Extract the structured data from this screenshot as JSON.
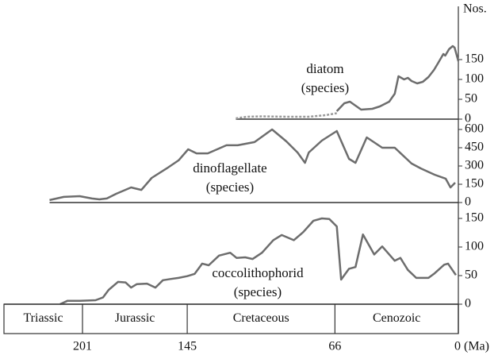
{
  "chart_data": [
    {
      "type": "line",
      "label": [
        "diatom",
        "(species)"
      ],
      "ylabel": "Nos.",
      "xlim": [
        243,
        0
      ],
      "ylim": [
        0,
        280
      ],
      "yticks": [
        0,
        50,
        100,
        150
      ],
      "series": [
        {
          "color": "#999999",
          "style": "dotted",
          "x": [
            119,
            113,
            105,
            92,
            80,
            71,
            65
          ],
          "values": [
            2,
            6,
            7,
            6,
            6,
            10,
            15
          ]
        },
        {
          "color": "#6d6d6d",
          "style": "solid",
          "x": [
            65,
            61,
            58,
            55,
            52,
            46,
            42,
            37,
            34,
            32,
            29,
            27,
            25,
            22,
            19,
            16,
            13,
            11,
            8,
            7,
            5,
            3,
            2,
            0
          ],
          "values": [
            20,
            40,
            44,
            34,
            24,
            26,
            32,
            44,
            64,
            108,
            100,
            104,
            96,
            90,
            94,
            106,
            124,
            140,
            164,
            160,
            176,
            184,
            180,
            146
          ]
        }
      ]
    },
    {
      "type": "line",
      "label": [
        "dinoflagellate",
        "(species)"
      ],
      "xlim": [
        243,
        0
      ],
      "ylim": [
        0,
        600
      ],
      "yticks": [
        0,
        150,
        300,
        450,
        600
      ],
      "series": [
        {
          "color": "#6d6d6d",
          "style": "solid",
          "x": [
            218.6,
            211,
            202.5,
            196,
            192,
            188,
            183,
            175,
            169.5,
            164,
            156,
            149.6,
            144.5,
            140,
            134,
            124,
            118,
            109,
            99.6,
            92,
            86,
            82,
            80,
            73,
            65,
            58.5,
            55,
            49,
            40.7,
            34,
            25,
            20,
            12.7,
            6.8,
            4.2,
            1.7
          ],
          "values": [
            20,
            46,
            52,
            33,
            26,
            33,
            72,
            124,
            104,
            202,
            280,
            346,
            437,
            404,
            404,
            470,
            470,
            496,
            600,
            502,
            411,
            326,
            411,
            509,
            587,
            359,
            326,
            535,
            450,
            450,
            320,
            280,
            228,
            196,
            124,
            163
          ]
        }
      ]
    },
    {
      "type": "line",
      "label": [
        "coccolithophorid",
        "(species)"
      ],
      "xlim": [
        243,
        0
      ],
      "ylim": [
        0,
        150
      ],
      "yticks": [
        0,
        50,
        100,
        150
      ],
      "xticks": [
        201,
        145,
        66,
        {
          "value": 0,
          "label": "0 (Ma)"
        }
      ],
      "periods": [
        "Triassic",
        "Jurassic",
        "Cretaceous",
        "Cenozoic"
      ],
      "series": [
        {
          "color": "#6d6d6d",
          "style": "solid",
          "x": [
            213,
            209,
            202.5,
            194,
            190,
            187,
            182,
            178,
            175,
            172,
            166.5,
            162,
            158,
            154,
            149.6,
            145,
            141,
            137,
            133.5,
            128,
            122,
            118.6,
            114,
            110,
            105,
            99,
            94.5,
            88,
            83,
            77.5,
            73,
            69,
            65,
            62.7,
            58.5,
            55,
            51,
            45,
            40.7,
            34,
            31,
            27,
            22.5,
            16,
            12.7,
            7.6,
            5.5,
            1.3
          ],
          "values": [
            0,
            6,
            6,
            7,
            12,
            25,
            39,
            38,
            29,
            35,
            36,
            29,
            42,
            44,
            46,
            49,
            53,
            71,
            68,
            85,
            90,
            81,
            82,
            79,
            90,
            112,
            121,
            112,
            126,
            146,
            150,
            149,
            136,
            43,
            62,
            65,
            122,
            87,
            101,
            76,
            81,
            60,
            46,
            46,
            54,
            69,
            71,
            51
          ]
        }
      ]
    }
  ]
}
